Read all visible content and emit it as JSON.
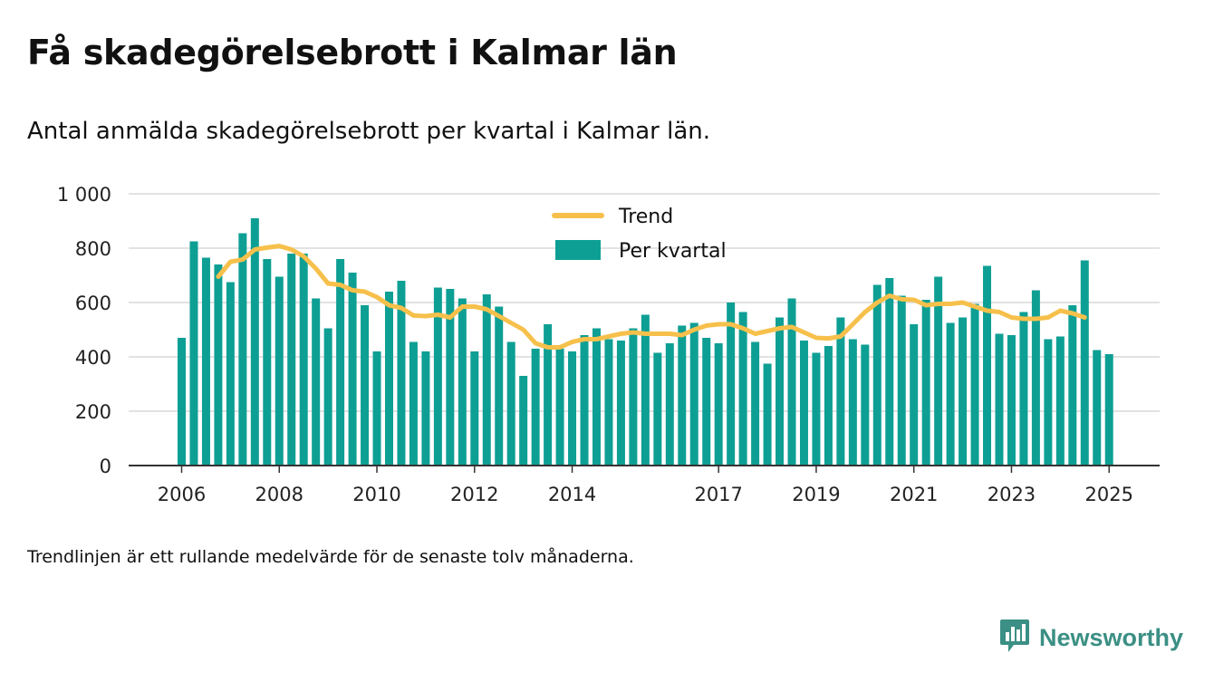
{
  "title": "Få skadegörelsebrott i Kalmar län",
  "subtitle": "Antal anmälda skadegörelsebrott per kvartal i Kalmar län.",
  "footnote": "Trendlinjen är ett rullande medelvärde för de senaste tolv månaderna.",
  "brand": {
    "name": "Newsworthy",
    "color": "#3b8f84"
  },
  "colors": {
    "bars": "#0e9f94",
    "trend": "#f6c04b",
    "grid": "#d9d9d9",
    "axis": "#333333"
  },
  "chart_data": {
    "type": "bar",
    "ylim": [
      0,
      1000
    ],
    "y_ticks": [
      "0",
      "200",
      "400",
      "600",
      "800",
      "1 000"
    ],
    "x_ticks": [
      {
        "label": "2006",
        "x": "2006-01-01"
      },
      {
        "label": "2008",
        "x": "2008-01-01"
      },
      {
        "label": "2010",
        "x": "2010-01-01"
      },
      {
        "label": "2012",
        "x": "2012-01-01"
      },
      {
        "label": "2014",
        "x": "2014-01-01"
      },
      {
        "label": "2017",
        "x": "2017-01-01"
      },
      {
        "label": "2019",
        "x": "2019-01-01"
      },
      {
        "label": "2021",
        "x": "2021-01-01"
      },
      {
        "label": "2023",
        "x": "2023-01-01"
      },
      {
        "label": "2025",
        "x": "2025-01-01"
      }
    ],
    "legend_position": "top-center",
    "series": [
      {
        "name": "Per kvartal",
        "type": "bar",
        "start_quarter": "2006-Q1",
        "values": [
          470,
          825,
          765,
          740,
          675,
          855,
          910,
          760,
          695,
          780,
          780,
          615,
          505,
          760,
          710,
          590,
          420,
          640,
          680,
          455,
          420,
          655,
          650,
          615,
          420,
          630,
          585,
          455,
          330,
          430,
          520,
          430,
          420,
          480,
          505,
          465,
          460,
          505,
          555,
          415,
          450,
          515,
          525,
          470,
          450,
          600,
          565,
          455,
          375,
          545,
          615,
          460,
          415,
          440,
          545,
          465,
          445,
          665,
          690,
          625,
          520,
          610,
          695,
          525,
          545,
          595,
          735,
          485,
          480,
          565,
          645,
          465,
          475,
          590,
          755,
          425,
          410
        ]
      },
      {
        "name": "Trend",
        "type": "line",
        "start_quarter": "2006-Q4",
        "values": [
          695,
          750,
          758,
          795,
          802,
          808,
          795,
          770,
          725,
          670,
          665,
          645,
          640,
          620,
          590,
          580,
          552,
          550,
          555,
          545,
          585,
          585,
          575,
          550,
          525,
          500,
          450,
          435,
          435,
          455,
          465,
          465,
          475,
          485,
          490,
          485,
          485,
          485,
          480,
          500,
          515,
          520,
          520,
          505,
          485,
          495,
          505,
          510,
          490,
          470,
          468,
          475,
          520,
          565,
          600,
          625,
          612,
          610,
          590,
          595,
          595,
          600,
          585,
          570,
          565,
          545,
          540,
          540,
          545,
          570,
          560,
          545
        ]
      }
    ]
  }
}
